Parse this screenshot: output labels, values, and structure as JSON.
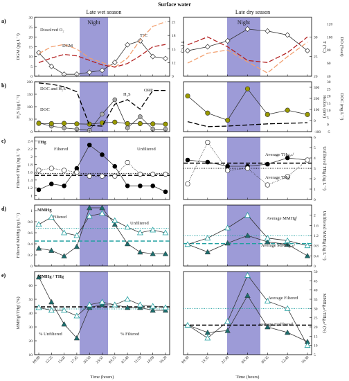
{
  "figure_title": "Surface water",
  "season_left": "Late wet season",
  "season_right": "Late dry season",
  "night_label": "Night",
  "colors": {
    "night": "#8c8ad0",
    "dgm": "#333333",
    "do": "#f2a070",
    "temp": "#b32020",
    "h2s_fill": "#aaaaaa",
    "doc": "#999900",
    "orp": "#000000",
    "thg_filt": "#ffffff",
    "thg_unf": "#000000",
    "mmhg_filt": "#7ee0d8",
    "mmhg_unf": "#1c6e6e",
    "teal_line": "#20a0a0"
  },
  "chart_data": [
    {
      "id": "a-left",
      "panel": "a)",
      "type": "line",
      "x": [
        "09:00",
        "12:25",
        "15:05",
        "17:45",
        "20:50",
        "23:55",
        "03:15",
        "07:40",
        "11:20",
        "14:00",
        "16:20"
      ],
      "ylabel": "DGM (pg L⁻¹)",
      "ylim": [
        0,
        30
      ],
      "yticks": [
        0,
        5,
        10,
        15,
        20,
        25,
        30
      ],
      "y2label": "T (°C)",
      "y2lim": [
        9,
        22
      ],
      "y2ticks": [
        9,
        12,
        15,
        18,
        21
      ],
      "series": [
        {
          "name": "DGM",
          "axis": "left",
          "style": "diamond",
          "values": [
            12,
            5,
            1,
            1,
            2,
            3,
            7,
            16,
            18,
            10,
            9
          ]
        },
        {
          "name": "Dissolved O₂",
          "axis": "right",
          "style": "dash-orange",
          "values": [
            14,
            15.5,
            16,
            15,
            13,
            12,
            11,
            13,
            17,
            20,
            21
          ]
        },
        {
          "name": "T°C",
          "axis": "right",
          "style": "dash-red",
          "values": [
            12,
            13,
            13.8,
            13.5,
            12.5,
            11.5,
            11,
            11.8,
            13.5,
            15.5,
            16
          ]
        }
      ],
      "annotations": [
        "Dissolved O₂",
        "T°C",
        "DGM"
      ]
    },
    {
      "id": "a-right",
      "panel": "",
      "type": "line",
      "x": [
        "09:30",
        "15:35",
        "21:40",
        "05:30",
        "09:35",
        "12:40",
        "16:30"
      ],
      "ylabel": "",
      "ylim": [
        0,
        30
      ],
      "y2label": "T (°C)",
      "y2lim": [
        20,
        35
      ],
      "y2ticks": [
        20,
        25,
        30
      ],
      "y3label": "DO (%sat)",
      "y3lim": [
        40,
        130
      ],
      "y3ticks": [
        40,
        60,
        80,
        100,
        120
      ],
      "series": [
        {
          "name": "DGM",
          "axis": "left",
          "style": "diamond",
          "values": [
            13,
            15,
            18,
            24,
            23,
            21,
            13
          ]
        },
        {
          "name": "T",
          "axis": "right",
          "style": "dash-red",
          "values": [
            28,
            30,
            27.5,
            24,
            23.5,
            26,
            30
          ]
        },
        {
          "name": "DO",
          "axis": "right2",
          "style": "dash-orange",
          "values": [
            60,
            75,
            80,
            62,
            45,
            70,
            92
          ]
        }
      ]
    },
    {
      "id": "b-left",
      "panel": "b)",
      "type": "line",
      "x": [
        "09:00",
        "12:25",
        "15:05",
        "17:45",
        "20:50",
        "23:55",
        "03:15",
        "07:40",
        "11:20",
        "14:00",
        "16:20"
      ],
      "ylabel": "H₂S (μg L⁻¹)",
      "ylim": [
        0,
        200
      ],
      "yticks": [
        0,
        50,
        100,
        150,
        200
      ],
      "series": [
        {
          "name": "H₂S",
          "axis": "left",
          "style": "grey-circle",
          "values": [
            35,
            22,
            15,
            10,
            5,
            70,
            128,
            15,
            60,
            10,
            10
          ]
        },
        {
          "name": "DOC",
          "axis": "left",
          "style": "olive-circle",
          "values": [
            33,
            32,
            33,
            31,
            30,
            35,
            38,
            32,
            32,
            31,
            30
          ]
        },
        {
          "name": "ORP",
          "axis": "left",
          "style": "dash-black",
          "values": [
            195,
            190,
            180,
            160,
            25,
            22,
            110,
            128,
            90,
            165,
            165
          ]
        }
      ],
      "annotations": [
        "DOC and H₂S",
        "H₂S",
        "ORP",
        "DOC"
      ]
    },
    {
      "id": "b-right",
      "panel": "",
      "type": "line",
      "x": [
        "09:30",
        "15:35",
        "21:40",
        "05:30",
        "09:35",
        "12:40",
        "16:30"
      ],
      "y2label": "Redox (mV)",
      "y2lim": [
        -100,
        350
      ],
      "y2ticks": [
        -100,
        0,
        100,
        200,
        300
      ],
      "y3label": "DOC (mg L⁻¹)",
      "y3lim": [
        -5,
        30
      ],
      "y3ticks": [
        -5,
        0,
        5,
        10,
        15,
        20,
        25,
        30
      ],
      "series": [
        {
          "name": "DOC",
          "axis": "right2",
          "style": "olive-circle",
          "values": [
            20,
            8,
            3,
            25,
            7,
            10,
            7
          ]
        },
        {
          "name": "ORP",
          "axis": "right",
          "style": "dash-black",
          "values": [
            -10,
            -55,
            -50,
            -40,
            -30,
            -25,
            -20
          ]
        }
      ]
    },
    {
      "id": "c-left",
      "panel": "c)",
      "type": "line",
      "x": [
        "09:00",
        "12:25",
        "15:05",
        "17:45",
        "20:50",
        "23:55",
        "03:15",
        "07:40",
        "11:20",
        "14:00",
        "16:20"
      ],
      "ylabel": "Filtered THg (ng L⁻¹)",
      "ylim": [
        0.9,
        2.5
      ],
      "yticks": [
        1.0,
        1.2,
        1.4,
        1.6,
        1.8,
        2.0,
        2.2,
        2.4
      ],
      "series": [
        {
          "name": "Unfiltered",
          "axis": "left",
          "style": "filled-circle",
          "values": [
            1.15,
            1.3,
            1.25,
            1.7,
            2.3,
            2.05,
            1.75,
            1.25,
            1.25,
            1.25,
            1.1
          ]
        },
        {
          "name": "Filtered",
          "axis": "left",
          "style": "open-circle",
          "values": [
            1.65,
            1.7,
            1.65,
            1.6,
            1.5,
            1.5,
            1.5,
            1.85,
            1.55,
            1.55,
            1.55
          ]
        }
      ],
      "reference_lines": [
        {
          "value": 1.57,
          "style": "dotted"
        },
        {
          "value": 1.52,
          "style": "dashed"
        }
      ],
      "annotations": [
        "THg",
        "Filtered",
        "Unfiltered"
      ]
    },
    {
      "id": "c-right",
      "panel": "",
      "type": "line",
      "x": [
        "09:30",
        "15:35",
        "21:40",
        "05:30",
        "09:35",
        "12:40",
        "16:30"
      ],
      "y2label": "Unfiltered THg (ng L⁻¹)",
      "y2lim": [
        0,
        6
      ],
      "y2ticks": [
        0,
        1,
        2,
        3,
        4,
        5,
        6
      ],
      "series": [
        {
          "name": "Unfiltered",
          "axis": "right",
          "style": "filled-circle",
          "values": [
            3.8,
            3.6,
            3.2,
            3.2,
            3.4,
            4.0,
            3.8
          ]
        },
        {
          "name": "Filtered",
          "axis": "right",
          "style": "open-circle",
          "values": [
            1.5,
            5.5,
            2.8,
            3.0,
            1.4,
            2.2,
            3.8
          ]
        }
      ],
      "reference_lines": [
        {
          "value": 3.5,
          "style": "dashed"
        },
        {
          "value": 3.0,
          "style": "dotted"
        }
      ],
      "annotations": [
        "Average THgᵤₙᶠ",
        "Average THgᶠ"
      ]
    },
    {
      "id": "d-left",
      "panel": "d)",
      "type": "line",
      "x": [
        "09:00",
        "12:25",
        "15:05",
        "17:45",
        "20:50",
        "23:55",
        "03:15",
        "07:40",
        "11:20",
        "14:00",
        "16:20"
      ],
      "ylabel": "Filtered MMHg (ng L⁻¹)",
      "ylim": [
        0,
        1.1
      ],
      "yticks": [
        0,
        0.2,
        0.4,
        0.6,
        0.8,
        1.0
      ],
      "series": [
        {
          "name": "Unfiltered",
          "axis": "left",
          "style": "dark-teal-triangle",
          "values": [
            0.32,
            0.28,
            0.18,
            0.35,
            1.05,
            1.05,
            0.75,
            0.4,
            0.25,
            0.22,
            0.22
          ]
        },
        {
          "name": "Filtered",
          "axis": "left",
          "style": "light-teal-triangle",
          "values": [
            0.75,
            0.88,
            0.6,
            0.55,
            0.9,
            0.95,
            0.82,
            0.7,
            0.6,
            0.65,
            0.6
          ]
        }
      ],
      "reference_lines": [
        {
          "value": 0.68,
          "style": "dotted-teal"
        },
        {
          "value": 0.45,
          "style": "dashed-teal"
        }
      ],
      "annotations": [
        "MMHg",
        "Filtered",
        "Unfiltered"
      ]
    },
    {
      "id": "d-right",
      "panel": "",
      "type": "line",
      "x": [
        "09:30",
        "15:35",
        "21:40",
        "05:30",
        "09:35",
        "12:40",
        "16:30"
      ],
      "y2label": "Unfiltered MMHg (ng L⁻¹)",
      "y2lim": [
        0,
        2.4
      ],
      "y2ticks": [
        0,
        0.4,
        0.8,
        1.2,
        1.6,
        2.0
      ],
      "series": [
        {
          "name": "Unfiltered",
          "axis": "right",
          "style": "dark-teal-triangle",
          "values": [
            0.85,
            0.55,
            0.9,
            1.2,
            0.95,
            0.85,
            0.4
          ]
        },
        {
          "name": "Filtered",
          "axis": "right",
          "style": "light-teal-triangle",
          "values": [
            0.85,
            1.1,
            1.5,
            2.0,
            1.1,
            1.0,
            0.8
          ]
        }
      ],
      "reference_lines": [
        {
          "value": 1.2,
          "style": "dotted-teal"
        },
        {
          "value": 0.88,
          "style": "dashed-teal"
        }
      ],
      "annotations": [
        "Average MMHgᶠ",
        "Average MMHgᵤₙᶠ"
      ]
    },
    {
      "id": "e-left",
      "panel": "e)",
      "type": "line",
      "x": [
        "09:00",
        "12:25",
        "15:05",
        "17:45",
        "20:50",
        "23:55",
        "03:15",
        "07:40",
        "11:20",
        "14:00",
        "16:20"
      ],
      "xlabel": "Time (hours)",
      "ylabel": "MMHgᶠ/THgᶠ (%)",
      "ylim": [
        10,
        70
      ],
      "yticks": [
        10,
        20,
        30,
        40,
        50,
        60
      ],
      "series": [
        {
          "name": "% Unfiltered",
          "axis": "left",
          "style": "dark-teal-triangle",
          "values": [
            66,
            48,
            32,
            22,
            44,
            46,
            46,
            44,
            44,
            42,
            42
          ]
        },
        {
          "name": "% Filtered",
          "axis": "left",
          "style": "light-teal-triangle",
          "values": [
            44,
            42,
            42,
            38,
            46,
            48,
            46,
            50,
            46,
            45,
            44
          ]
        }
      ],
      "reference_lines": [
        {
          "value": 44.5,
          "style": "dashed-black"
        },
        {
          "value": 43,
          "style": "dotted-teal"
        }
      ],
      "annotations": [
        "MMHg / THg",
        "% Unfiltered",
        "% Filtered"
      ]
    },
    {
      "id": "e-right",
      "panel": "",
      "type": "line",
      "x": [
        "09:30",
        "15:35",
        "21:40",
        "05:30",
        "09:35",
        "12:40",
        "16:30"
      ],
      "xlabel": "Time (hours)",
      "y2label": "MMHgᵤₙᶠ/THgᵤₙᶠ (%)",
      "y2lim": [
        5,
        50
      ],
      "y2ticks": [
        5,
        10,
        15,
        20,
        25,
        30,
        35,
        40,
        45,
        50
      ],
      "series": [
        {
          "name": "Unfiltered",
          "axis": "right",
          "style": "dark-teal-triangle",
          "values": [
            21,
            17,
            18,
            37,
            20,
            17,
            12
          ]
        },
        {
          "name": "Filtered",
          "axis": "right",
          "style": "light-teal-triangle",
          "values": [
            21,
            14,
            23,
            48,
            34,
            30,
            10
          ]
        }
      ],
      "reference_lines": [
        {
          "value": 30,
          "style": "dotted-teal"
        },
        {
          "value": 21,
          "style": "dashed-black"
        }
      ],
      "annotations": [
        "Average Filtered",
        "Average Unfiltered"
      ]
    }
  ]
}
